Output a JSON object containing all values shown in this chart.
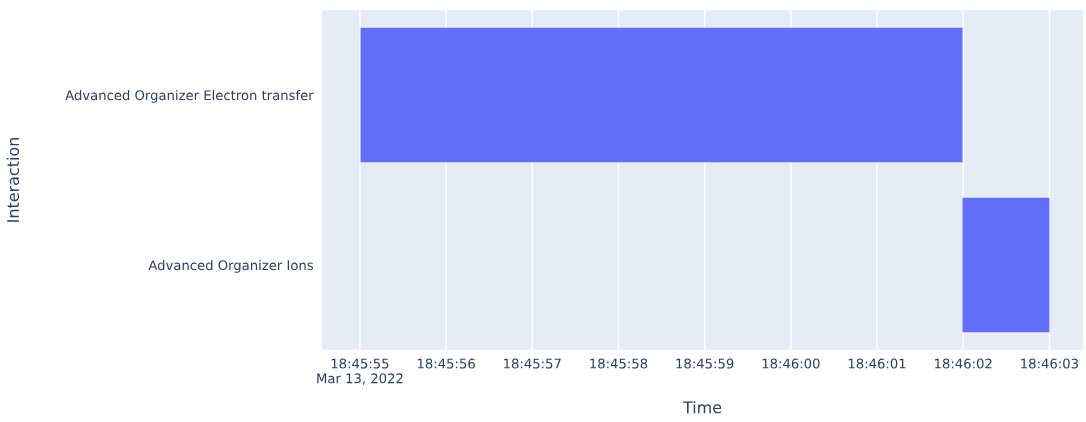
{
  "chart_data": {
    "type": "bar",
    "orientation": "horizontal",
    "xlabel": "Time",
    "ylabel": "Interaction",
    "categories": [
      "Advanced Organizer Electron transfer",
      "Advanced Organizer Ions"
    ],
    "base": [
      18.76528,
      18.76722
    ],
    "values": [
      0.00194,
      0.00028
    ],
    "color": "#636efa",
    "xlim": [
      18.7651556,
      18.7676083
    ],
    "xticks": [
      {
        "value": 18.7652778,
        "label": "18:45:55\nMar 13, 2022"
      },
      {
        "value": 18.7655556,
        "label": "18:45:56"
      },
      {
        "value": 18.7658333,
        "label": "18:45:57"
      },
      {
        "value": 18.7661111,
        "label": "18:45:58"
      },
      {
        "value": 18.7663889,
        "label": "18:45:59"
      },
      {
        "value": 18.7666667,
        "label": "18:46:00"
      },
      {
        "value": 18.7669444,
        "label": "18:46:01"
      },
      {
        "value": 18.7672222,
        "label": "18:46:02"
      },
      {
        "value": 18.7675,
        "label": "18:46:03"
      }
    ],
    "grid": "x"
  }
}
